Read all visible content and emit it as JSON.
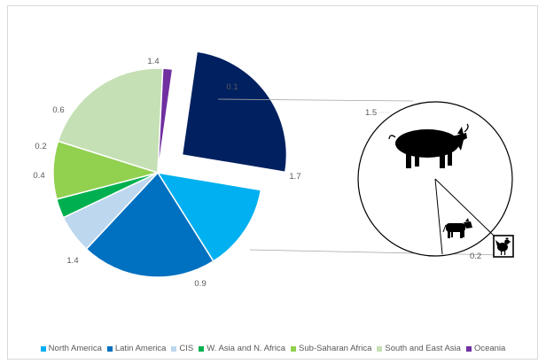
{
  "chart_data": {
    "type": "pie",
    "title": "",
    "slices": [
      {
        "name": "North America",
        "value": 0.9,
        "label": "0.9",
        "color": "#00b0f0"
      },
      {
        "name": "Latin America",
        "value": 1.4,
        "label": "1.4",
        "color": "#0070c0"
      },
      {
        "name": "CIS",
        "value": 0.4,
        "label": "0.4",
        "color": "#bdd7ee"
      },
      {
        "name": "W. Asia and N. Africa",
        "value": 0.2,
        "label": "0.2",
        "color": "#00b050"
      },
      {
        "name": "Sub-Saharan Africa",
        "value": 0.6,
        "label": "0.6",
        "color": "#92d050"
      },
      {
        "name": "South and East Asia",
        "value": 1.4,
        "label": "1.4",
        "color": "#c5e0b4"
      },
      {
        "name": "Oceania",
        "value": 0.1,
        "label": "0.1",
        "color": "#7030a0"
      },
      {
        "name": "",
        "value": 1.7,
        "label": "1.7",
        "color": "#002060",
        "exploded": true
      }
    ],
    "breakdown": {
      "items": [
        {
          "icon": "pig-icon",
          "value": 1.5,
          "label": "1.5"
        },
        {
          "icon": "cattle-icon",
          "value": 0.05
        },
        {
          "icon": "chicken-icon",
          "value": 0.2,
          "label": "0.2"
        }
      ]
    },
    "legend": {
      "placement": "bottom"
    }
  }
}
